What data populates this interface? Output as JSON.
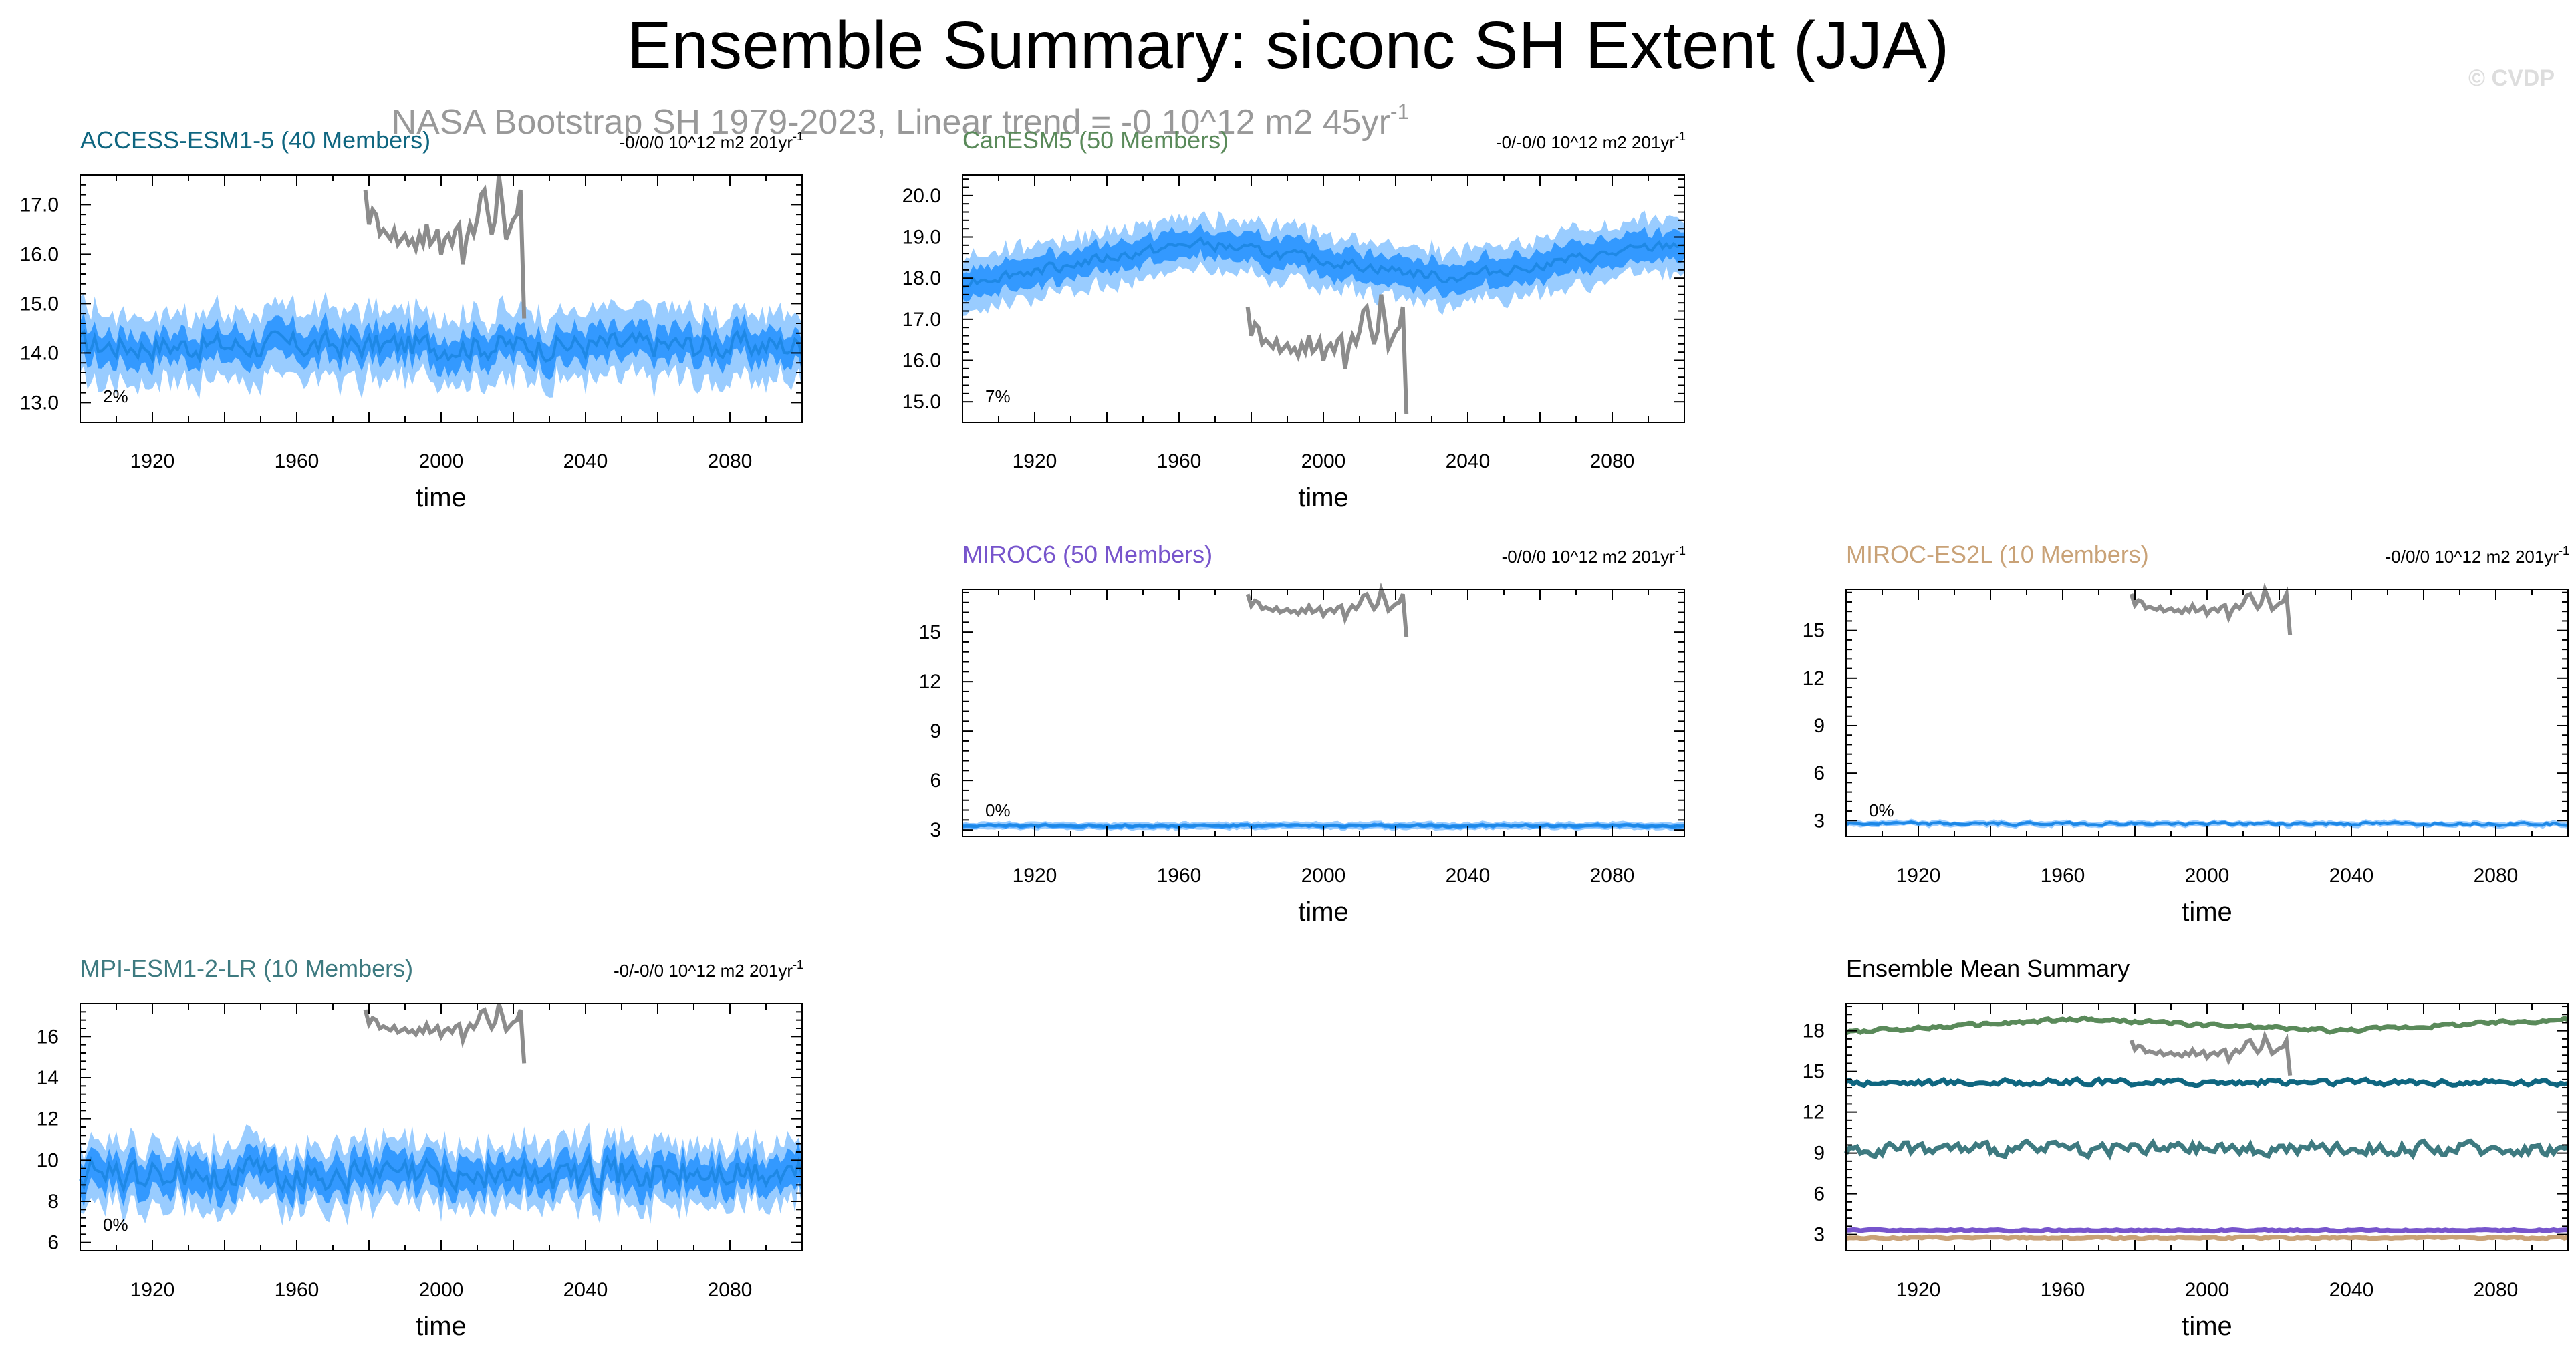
{
  "title": "Ensemble Summary: siconc SH Extent (JJA)",
  "subtitle": "NASA Bootstrap SH 1979-2023, Linear trend = -0 10^12 m2 45yr",
  "subtitle_sup": "-1",
  "watermark": "© CVDP",
  "colors": {
    "band_outer": "#99ccff",
    "band_inner": "#3399ff",
    "mean_line": "#1e88e5",
    "observations": "#8c8c8c",
    "access": "#0f6680",
    "canesm": "#5a8a5a",
    "miroc6": "#7755cc",
    "miroces2l": "#c9a277",
    "mpi": "#3e7a80",
    "summary_title": "#000000"
  },
  "chart_data": [
    {
      "type": "line",
      "title": "ACCESS-ESM1-5 (40 Members)",
      "trend_label": "-0/0/0 10^12 m2 201yr",
      "trend_sup": "-1",
      "percent_label": "2%",
      "xlabel": "time",
      "ylabel": "",
      "xlim": [
        1900,
        2100
      ],
      "ylim": [
        12.6,
        17.6
      ],
      "x_ticks": [
        1920,
        1960,
        2000,
        2040,
        2080
      ],
      "y_ticks": [
        "13.0",
        "14.0",
        "15.0",
        "16.0",
        "17.0"
      ],
      "y_tick_values": [
        13,
        14,
        15,
        16,
        17
      ],
      "mean": 14.15,
      "wiggle": 0.25,
      "shape": "flat",
      "inner_spread": 0.32,
      "outer_spread": 0.68,
      "obs_offset": 0
    },
    {
      "type": "line",
      "title": "CanESM5 (50 Members)",
      "trend_label": "-0/-0/0 10^12 m2 201yr",
      "trend_sup": "-1",
      "percent_label": "7%",
      "xlabel": "time",
      "ylabel": "",
      "xlim": [
        1900,
        2100
      ],
      "ylim": [
        14.5,
        20.5
      ],
      "x_ticks": [
        1920,
        1960,
        2000,
        2040,
        2080
      ],
      "y_ticks": [
        "15.0",
        "16.0",
        "17.0",
        "18.0",
        "19.0",
        "20.0"
      ],
      "y_tick_values": [
        15,
        16,
        17,
        18,
        19,
        20
      ],
      "mean": 18.5,
      "wiggle": 0.12,
      "shape": "canesm",
      "inner_spread": 0.35,
      "outer_spread": 0.65,
      "obs_offset": 0
    },
    {
      "type": "line",
      "title": "MIROC6 (50 Members)",
      "trend_label": "-0/0/0 10^12 m2 201yr",
      "trend_sup": "-1",
      "percent_label": "0%",
      "xlabel": "time",
      "ylabel": "",
      "xlim": [
        1900,
        2100
      ],
      "ylim": [
        2.6,
        17.6
      ],
      "x_ticks": [
        1920,
        1960,
        2000,
        2040,
        2080
      ],
      "y_ticks": [
        "3",
        "6",
        "9",
        "12",
        "15"
      ],
      "y_tick_values": [
        3,
        6,
        9,
        12,
        15
      ],
      "mean": 3.25,
      "wiggle": 0.05,
      "shape": "flat",
      "inner_spread": 0.12,
      "outer_spread": 0.22,
      "obs_offset": 0
    },
    {
      "type": "line",
      "title": "MIROC-ES2L (10 Members)",
      "trend_label": "-0/0/0 10^12 m2 201yr",
      "trend_sup": "-1",
      "percent_label": "0%",
      "xlabel": "time",
      "ylabel": "",
      "xlim": [
        1900,
        2100
      ],
      "ylim": [
        2.0,
        17.6
      ],
      "x_ticks": [
        1920,
        1960,
        2000,
        2040,
        2080
      ],
      "y_ticks": [
        "3",
        "6",
        "9",
        "12",
        "15"
      ],
      "y_tick_values": [
        3,
        6,
        9,
        12,
        15
      ],
      "mean": 2.8,
      "wiggle": 0.08,
      "shape": "flat",
      "inner_spread": 0.1,
      "outer_spread": 0.18,
      "obs_offset": 0
    },
    {
      "type": "line",
      "title": "MPI-ESM1-2-LR (10 Members)",
      "trend_label": "-0/-0/0 10^12 m2 201yr",
      "trend_sup": "-1",
      "percent_label": "0%",
      "xlabel": "time",
      "ylabel": "",
      "xlim": [
        1900,
        2100
      ],
      "ylim": [
        5.6,
        17.6
      ],
      "x_ticks": [
        1920,
        1960,
        2000,
        2040,
        2080
      ],
      "y_ticks": [
        "6",
        "8",
        "10",
        "12",
        "14",
        "16"
      ],
      "y_tick_values": [
        6,
        8,
        10,
        12,
        14,
        16
      ],
      "mean": 9.3,
      "wiggle": 0.7,
      "shape": "flat",
      "inner_spread": 0.8,
      "outer_spread": 1.5,
      "obs_offset": 0
    },
    {
      "type": "line",
      "title": "Ensemble Mean Summary",
      "xlabel": "time",
      "ylabel": "",
      "xlim": [
        1900,
        2100
      ],
      "ylim": [
        1.8,
        20.0
      ],
      "x_ticks": [
        1920,
        1960,
        2000,
        2040,
        2080
      ],
      "y_ticks": [
        "3",
        "6",
        "9",
        "12",
        "15",
        "18"
      ],
      "y_tick_values": [
        3,
        6,
        9,
        12,
        15,
        18
      ],
      "series": [
        {
          "model": "CanESM5",
          "color": "#5a8a5a",
          "mean": 18.5,
          "wiggle": 0.12,
          "shape": "canesm"
        },
        {
          "model": "ACCESS-ESM1-5",
          "color": "#0f6680",
          "mean": 14.2,
          "wiggle": 0.2,
          "shape": "flat"
        },
        {
          "model": "MPI-ESM1-2-LR",
          "color": "#3e7a80",
          "mean": 9.3,
          "wiggle": 0.45,
          "shape": "flat"
        },
        {
          "model": "MIROC6",
          "color": "#7755cc",
          "mean": 3.3,
          "wiggle": 0.05,
          "shape": "flat"
        },
        {
          "model": "MIROC-ES2L",
          "color": "#c9a277",
          "mean": 2.75,
          "wiggle": 0.06,
          "shape": "flat"
        }
      ]
    }
  ],
  "observations": {
    "name": "NASA Bootstrap SH 1979-2023",
    "years": [
      1979,
      1980,
      1981,
      1982,
      1983,
      1984,
      1985,
      1986,
      1987,
      1988,
      1989,
      1990,
      1991,
      1992,
      1993,
      1994,
      1995,
      1996,
      1997,
      1998,
      1999,
      2000,
      2001,
      2002,
      2003,
      2004,
      2005,
      2006,
      2007,
      2008,
      2009,
      2010,
      2011,
      2012,
      2013,
      2014,
      2015,
      2016,
      2017,
      2018,
      2019,
      2020,
      2021,
      2022,
      2023
    ],
    "values": [
      17.3,
      16.6,
      16.9,
      16.8,
      16.4,
      16.5,
      16.4,
      16.3,
      16.5,
      16.2,
      16.3,
      16.4,
      16.2,
      16.3,
      16.1,
      16.4,
      16.2,
      16.6,
      16.2,
      16.3,
      16.5,
      16.0,
      16.3,
      16.4,
      16.2,
      16.5,
      16.6,
      15.8,
      16.3,
      16.6,
      16.4,
      16.7,
      17.2,
      17.3,
      16.8,
      16.4,
      16.7,
      17.6,
      17.0,
      16.3,
      16.5,
      16.7,
      16.8,
      17.3,
      14.7
    ]
  }
}
